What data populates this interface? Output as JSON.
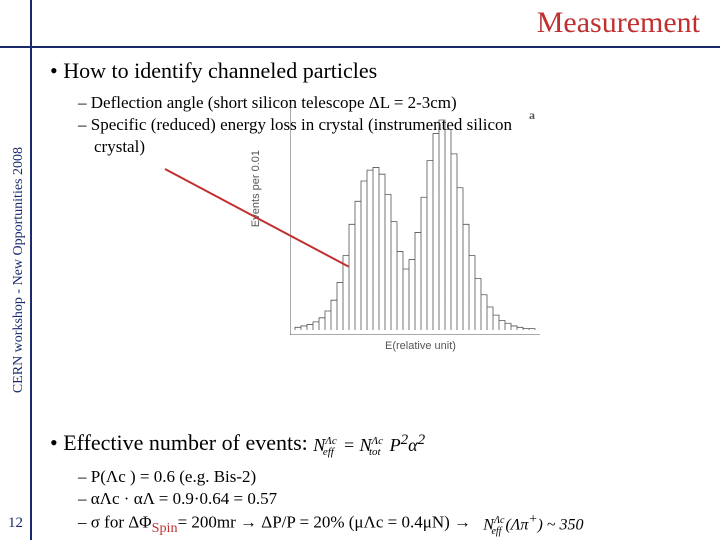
{
  "header": {
    "title": "Measurement"
  },
  "sidebar": {
    "text": "CERN workshop - New Opportunities 2008"
  },
  "page_number": "12",
  "section1": {
    "bullet": "•  How to identify channeled particles",
    "sub1": "–  Deflection angle (short silicon telescope ΔL = 2-3cm)",
    "sub2a": "–  Specific (reduced) energy loss in crystal (instrumented silicon",
    "sub2b": "crystal)"
  },
  "section2": {
    "bullet_prefix": "•  Effective number of events: ",
    "formula_main": "N",
    "sub1": "–  P(Λc ) = 0.6 (e.g. Bis-2)",
    "sub2": "–  αΛc · αΛ = 0.9·0.64 = 0.57",
    "sub3_a": "–  σ for ΔΦ",
    "sub3_spin": "Spin",
    "sub3_b": "= 200mr → ΔP/P = 20% (μΛc = 0.4μN)  →"
  },
  "chart": {
    "y_label": "Events per 0.01",
    "x_label": "E(relative unit)",
    "a_label": "a",
    "bins": [
      2,
      3,
      4,
      6,
      9,
      14,
      22,
      35,
      55,
      78,
      95,
      110,
      118,
      120,
      115,
      100,
      80,
      58,
      45,
      52,
      72,
      98,
      125,
      145,
      155,
      148,
      130,
      105,
      78,
      55,
      38,
      26,
      17,
      11,
      7,
      5,
      3,
      2,
      1,
      1
    ]
  },
  "colors": {
    "accent_red": "#c03030",
    "accent_blue": "#1a2a6c"
  }
}
